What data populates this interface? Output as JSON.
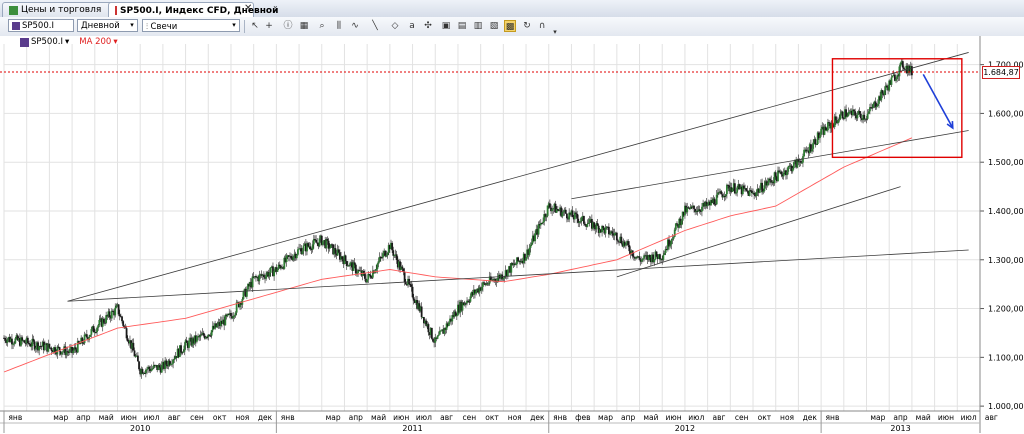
{
  "tabs": [
    {
      "label": "Цены и торговля",
      "active": false
    },
    {
      "label": "SP500.I, Индекс CFD, Дневной",
      "active": true
    }
  ],
  "toolbar": {
    "symbol": "SP500.I",
    "period": "Дневной",
    "chart_type": "Свечи",
    "buttons": [
      "cursor-icon",
      "crosshair-icon",
      "info-icon",
      "grid-icon",
      "zoom-icon",
      "bar-style-icon",
      "indicator-icon",
      "line-tool-icon",
      "eraser-icon",
      "arrows-icon",
      "template-icon",
      "save-template-icon",
      "print-icon",
      "autoscroll-icon",
      "magnet-icon"
    ],
    "dropdown_arrow": "▾"
  },
  "legend": {
    "symbol": "SP500.I",
    "indicator": "MA 200"
  },
  "current_price": "1.684,87",
  "colors": {
    "up": "#2e7d32",
    "down": "#1a1a1a",
    "ma": "#ff5a5a",
    "trend": "#3a3a3a",
    "box": "#e00000",
    "arrow": "#1f3fd8",
    "price_line": "#e00000"
  },
  "chart_data": {
    "type": "candlestick",
    "ylim": [
      990,
      1730
    ],
    "y_ticks": [
      "1.000,00",
      "1.100,00",
      "1.200,00",
      "1.300,00",
      "1.400,00",
      "1.500,00",
      "1.600,00",
      "1.700,00"
    ],
    "months": [
      "янв",
      "мар",
      "апр",
      "май",
      "июн",
      "июл",
      "авг",
      "сен",
      "окт",
      "ноя",
      "дек",
      "янв",
      "мар",
      "апр",
      "май",
      "июн",
      "июл",
      "авг",
      "сен",
      "окт",
      "ноя",
      "дек",
      "янв",
      "фев",
      "мар",
      "апр",
      "май",
      "июн",
      "июл",
      "авг",
      "сен",
      "окт",
      "ноя",
      "дек",
      "янв",
      "мар",
      "апр",
      "май",
      "июн",
      "июл",
      "авг"
    ],
    "years": [
      "2010",
      "2011",
      "2012",
      "2013"
    ],
    "close_path": [
      [
        0,
        1140
      ],
      [
        3,
        1110
      ],
      [
        4,
        1160
      ],
      [
        5,
        1200
      ],
      [
        6,
        1075
      ],
      [
        7,
        1080
      ],
      [
        8,
        1125
      ],
      [
        9,
        1150
      ],
      [
        10,
        1185
      ],
      [
        11,
        1260
      ],
      [
        12,
        1280
      ],
      [
        13,
        1320
      ],
      [
        14,
        1340
      ],
      [
        15,
        1300
      ],
      [
        16,
        1260
      ],
      [
        17,
        1330
      ],
      [
        18,
        1230
      ],
      [
        19,
        1130
      ],
      [
        20,
        1200
      ],
      [
        21,
        1245
      ],
      [
        22,
        1270
      ],
      [
        23,
        1310
      ],
      [
        24,
        1410
      ],
      [
        25,
        1390
      ],
      [
        26,
        1370
      ],
      [
        27,
        1350
      ],
      [
        28,
        1300
      ],
      [
        29,
        1310
      ],
      [
        30,
        1400
      ],
      [
        31,
        1410
      ],
      [
        32,
        1450
      ],
      [
        33,
        1435
      ],
      [
        34,
        1470
      ],
      [
        35,
        1500
      ],
      [
        36,
        1560
      ],
      [
        37,
        1600
      ],
      [
        38,
        1595
      ],
      [
        39,
        1660
      ],
      [
        39.6,
        1700
      ],
      [
        40,
        1685
      ]
    ],
    "ma200_path": [
      [
        0,
        1070
      ],
      [
        5,
        1160
      ],
      [
        8,
        1180
      ],
      [
        11,
        1220
      ],
      [
        14,
        1260
      ],
      [
        17,
        1280
      ],
      [
        19,
        1265
      ],
      [
        22,
        1255
      ],
      [
        24,
        1270
      ],
      [
        27,
        1300
      ],
      [
        30,
        1360
      ],
      [
        32,
        1390
      ],
      [
        34,
        1410
      ],
      [
        37,
        1490
      ],
      [
        40,
        1550
      ]
    ],
    "trend_lines": [
      {
        "from": [
          2.8,
          1215
        ],
        "to": [
          42.5,
          1725
        ]
      },
      {
        "from": [
          2.8,
          1215
        ],
        "to": [
          42.5,
          1320
        ]
      },
      {
        "from": [
          25,
          1425
        ],
        "to": [
          42.5,
          1565
        ]
      },
      {
        "from": [
          27,
          1265
        ],
        "to": [
          39.5,
          1450
        ]
      }
    ],
    "forecast_arrow": {
      "from": [
        40.5,
        1680
      ],
      "to": [
        41.8,
        1570
      ]
    },
    "highlight_box": {
      "from": [
        36.5,
        1510
      ],
      "to": [
        42.2,
        1712
      ]
    }
  }
}
